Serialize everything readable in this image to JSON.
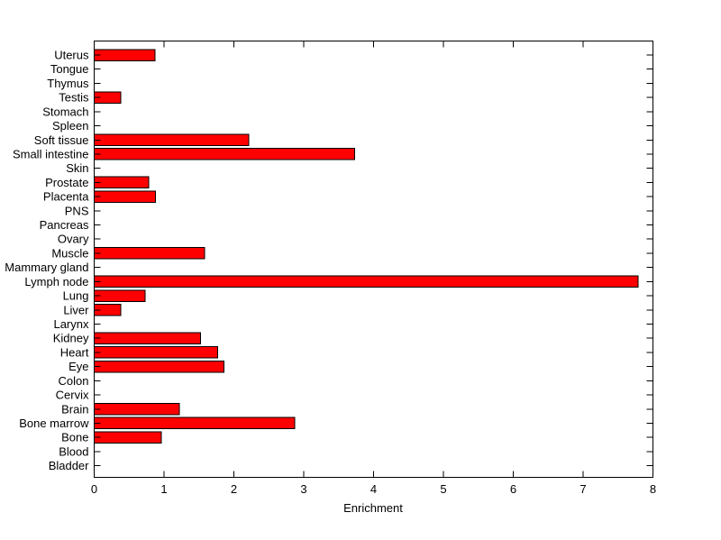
{
  "figure": {
    "background": "#FFFFFF"
  },
  "chart_data": {
    "type": "bar",
    "orientation": "horizontal",
    "title": "",
    "xlabel": "Enrichment",
    "ylabel": "",
    "xlim": [
      0,
      8
    ],
    "xtick_labels": [
      "0",
      "1",
      "2",
      "3",
      "4",
      "5",
      "6",
      "7",
      "8"
    ],
    "grid": false,
    "legend": false,
    "box": true,
    "bar_color": "#FF0000",
    "bar_edge_color": "#000000",
    "axis_color": "#000000",
    "text_color": "#000000",
    "category_order": "top-to-bottom",
    "categories": [
      "Uterus",
      "Tongue",
      "Thymus",
      "Testis",
      "Stomach",
      "Spleen",
      "Soft tissue",
      "Small intestine",
      "Skin",
      "Prostate",
      "Placenta",
      "PNS",
      "Pancreas",
      "Ovary",
      "Muscle",
      "Mammary gland",
      "Lymph node",
      "Lung",
      "Liver",
      "Larynx",
      "Kidney",
      "Heart",
      "Eye",
      "Colon",
      "Cervix",
      "Brain",
      "Bone marrow",
      "Bone",
      "Blood",
      "Bladder"
    ],
    "values": [
      0.87,
      0,
      0,
      0.38,
      0,
      0,
      2.21,
      3.73,
      0,
      0.78,
      0.88,
      0,
      0,
      0,
      1.58,
      0,
      7.79,
      0.73,
      0.38,
      0,
      1.52,
      1.77,
      1.86,
      0,
      0,
      1.22,
      2.87,
      0.96,
      0,
      0
    ]
  }
}
